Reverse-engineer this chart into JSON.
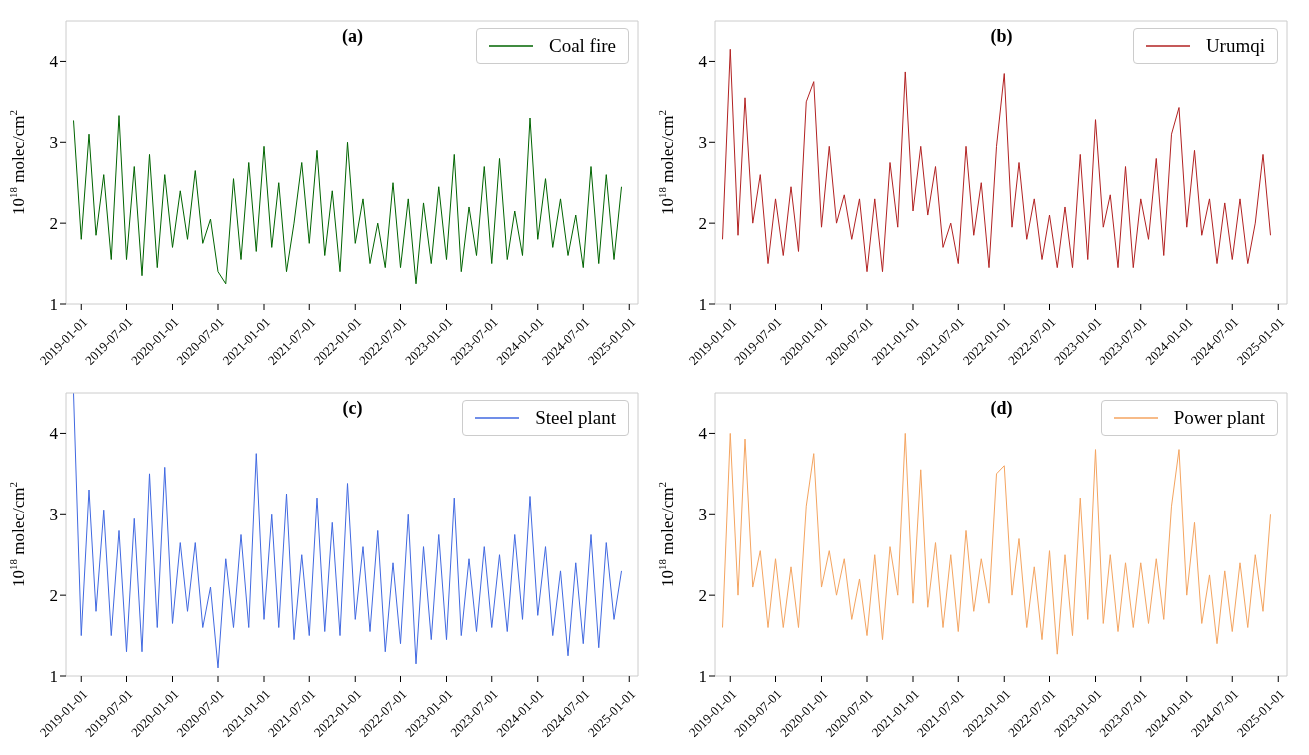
{
  "chart_data": [
    {
      "type": "line",
      "title": "(a)",
      "ylabel": "10$^{18}$ molec/cm$^{2}$",
      "legend": "top right",
      "xlim": [
        "2018-11-01",
        "2025-02-05"
      ],
      "ylim": [
        1,
        4.5
      ],
      "yticks": [
        1,
        2,
        3,
        4
      ],
      "xticks": [
        "2019-01-01",
        "2019-07-01",
        "2020-01-01",
        "2020-07-01",
        "2021-01-01",
        "2021-07-01",
        "2022-01-01",
        "2022-07-01",
        "2023-01-01",
        "2023-07-01",
        "2024-01-01",
        "2024-07-01",
        "2025-01-01"
      ],
      "x": [
        "2018-12",
        "2019-01",
        "2019-02",
        "2019-03",
        "2019-04",
        "2019-05",
        "2019-06",
        "2019-07",
        "2019-08",
        "2019-09",
        "2019-10",
        "2019-11",
        "2019-12",
        "2020-01",
        "2020-02",
        "2020-03",
        "2020-04",
        "2020-05",
        "2020-06",
        "2020-07",
        "2020-08",
        "2020-09",
        "2020-10",
        "2020-11",
        "2020-12",
        "2021-01",
        "2021-02",
        "2021-03",
        "2021-04",
        "2021-05",
        "2021-06",
        "2021-07",
        "2021-08",
        "2021-09",
        "2021-10",
        "2021-11",
        "2021-12",
        "2022-01",
        "2022-02",
        "2022-03",
        "2022-04",
        "2022-05",
        "2022-06",
        "2022-07",
        "2022-08",
        "2022-09",
        "2022-10",
        "2022-11",
        "2022-12",
        "2023-01",
        "2023-02",
        "2023-03",
        "2023-04",
        "2023-05",
        "2023-06",
        "2023-07",
        "2023-08",
        "2023-09",
        "2023-10",
        "2023-11",
        "2023-12",
        "2024-01",
        "2024-02",
        "2024-03",
        "2024-04",
        "2024-05",
        "2024-06",
        "2024-07",
        "2024-08",
        "2024-09",
        "2024-10",
        "2024-11",
        "2024-12"
      ],
      "series": [
        {
          "name": "Coal fire",
          "color": "#006400",
          "values": [
            3.27,
            1.8,
            3.1,
            1.85,
            2.6,
            1.55,
            3.33,
            1.55,
            2.7,
            1.35,
            2.85,
            1.45,
            2.6,
            1.7,
            2.4,
            1.8,
            2.65,
            1.75,
            2.05,
            1.4,
            1.25,
            2.55,
            1.55,
            2.75,
            1.65,
            2.95,
            1.7,
            2.5,
            1.4,
            2.0,
            2.75,
            1.75,
            2.9,
            1.6,
            2.4,
            1.4,
            3.0,
            1.75,
            2.3,
            1.5,
            2.0,
            1.45,
            2.5,
            1.45,
            2.3,
            1.25,
            2.25,
            1.5,
            2.45,
            1.55,
            2.85,
            1.4,
            2.2,
            1.6,
            2.7,
            1.5,
            2.8,
            1.55,
            2.15,
            1.6,
            3.3,
            1.8,
            2.55,
            1.7,
            2.3,
            1.6,
            2.1,
            1.45,
            2.7,
            1.5,
            2.6,
            1.55,
            2.45
          ]
        }
      ]
    },
    {
      "type": "line",
      "title": "(b)",
      "ylabel": "10$^{18}$ molec/cm$^{2}$",
      "legend": "top right",
      "xlim": [
        "2018-11-01",
        "2025-02-05"
      ],
      "ylim": [
        1,
        4.5
      ],
      "yticks": [
        1,
        2,
        3,
        4
      ],
      "xticks": [
        "2019-01-01",
        "2019-07-01",
        "2020-01-01",
        "2020-07-01",
        "2021-01-01",
        "2021-07-01",
        "2022-01-01",
        "2022-07-01",
        "2023-01-01",
        "2023-07-01",
        "2024-01-01",
        "2024-07-01",
        "2025-01-01"
      ],
      "x": [
        "2018-12",
        "2019-01",
        "2019-02",
        "2019-03",
        "2019-04",
        "2019-05",
        "2019-06",
        "2019-07",
        "2019-08",
        "2019-09",
        "2019-10",
        "2019-11",
        "2019-12",
        "2020-01",
        "2020-02",
        "2020-03",
        "2020-04",
        "2020-05",
        "2020-06",
        "2020-07",
        "2020-08",
        "2020-09",
        "2020-10",
        "2020-11",
        "2020-12",
        "2021-01",
        "2021-02",
        "2021-03",
        "2021-04",
        "2021-05",
        "2021-06",
        "2021-07",
        "2021-08",
        "2021-09",
        "2021-10",
        "2021-11",
        "2021-12",
        "2022-01",
        "2022-02",
        "2022-03",
        "2022-04",
        "2022-05",
        "2022-06",
        "2022-07",
        "2022-08",
        "2022-09",
        "2022-10",
        "2022-11",
        "2022-12",
        "2023-01",
        "2023-02",
        "2023-03",
        "2023-04",
        "2023-05",
        "2023-06",
        "2023-07",
        "2023-08",
        "2023-09",
        "2023-10",
        "2023-11",
        "2023-12",
        "2024-01",
        "2024-02",
        "2024-03",
        "2024-04",
        "2024-05",
        "2024-06",
        "2024-07",
        "2024-08",
        "2024-09",
        "2024-10",
        "2024-11",
        "2024-12"
      ],
      "series": [
        {
          "name": "Urumqi",
          "color": "#b22222",
          "values": [
            1.8,
            4.15,
            1.85,
            3.55,
            2.0,
            2.6,
            1.5,
            2.3,
            1.6,
            2.45,
            1.65,
            3.5,
            3.75,
            1.95,
            2.95,
            2.0,
            2.35,
            1.8,
            2.3,
            1.4,
            2.3,
            1.4,
            2.75,
            1.95,
            3.87,
            2.15,
            2.95,
            2.1,
            2.7,
            1.7,
            2.0,
            1.5,
            2.95,
            1.85,
            2.5,
            1.45,
            2.95,
            3.85,
            1.95,
            2.75,
            1.8,
            2.3,
            1.55,
            2.1,
            1.45,
            2.2,
            1.45,
            2.85,
            1.55,
            3.28,
            1.95,
            2.35,
            1.45,
            2.7,
            1.45,
            2.3,
            1.8,
            2.8,
            1.6,
            3.1,
            3.43,
            1.95,
            2.9,
            1.85,
            2.3,
            1.5,
            2.25,
            1.55,
            2.3,
            1.5,
            2.0,
            2.85,
            1.85
          ]
        }
      ]
    },
    {
      "type": "line",
      "title": "(c)",
      "ylabel": "10$^{18}$ molec/cm$^{2}$",
      "legend": "top right",
      "xlim": [
        "2018-11-01",
        "2025-02-05"
      ],
      "ylim": [
        1,
        4.5
      ],
      "yticks": [
        1,
        2,
        3,
        4
      ],
      "xticks": [
        "2019-01-01",
        "2019-07-01",
        "2020-01-01",
        "2020-07-01",
        "2021-01-01",
        "2021-07-01",
        "2022-01-01",
        "2022-07-01",
        "2023-01-01",
        "2023-07-01",
        "2024-01-01",
        "2024-07-01",
        "2025-01-01"
      ],
      "x": [
        "2018-12",
        "2019-01",
        "2019-02",
        "2019-03",
        "2019-04",
        "2019-05",
        "2019-06",
        "2019-07",
        "2019-08",
        "2019-09",
        "2019-10",
        "2019-11",
        "2019-12",
        "2020-01",
        "2020-02",
        "2020-03",
        "2020-04",
        "2020-05",
        "2020-06",
        "2020-07",
        "2020-08",
        "2020-09",
        "2020-10",
        "2020-11",
        "2020-12",
        "2021-01",
        "2021-02",
        "2021-03",
        "2021-04",
        "2021-05",
        "2021-06",
        "2021-07",
        "2021-08",
        "2021-09",
        "2021-10",
        "2021-11",
        "2021-12",
        "2022-01",
        "2022-02",
        "2022-03",
        "2022-04",
        "2022-05",
        "2022-06",
        "2022-07",
        "2022-08",
        "2022-09",
        "2022-10",
        "2022-11",
        "2022-12",
        "2023-01",
        "2023-02",
        "2023-03",
        "2023-04",
        "2023-05",
        "2023-06",
        "2023-07",
        "2023-08",
        "2023-09",
        "2023-10",
        "2023-11",
        "2023-12",
        "2024-01",
        "2024-02",
        "2024-03",
        "2024-04",
        "2024-05",
        "2024-06",
        "2024-07",
        "2024-08",
        "2024-09",
        "2024-10",
        "2024-11",
        "2024-12"
      ],
      "series": [
        {
          "name": "Steel plant",
          "color": "#4169e1",
          "values": [
            4.5,
            1.5,
            3.3,
            1.8,
            3.05,
            1.5,
            2.8,
            1.3,
            2.95,
            1.3,
            3.5,
            1.6,
            3.58,
            1.65,
            2.65,
            1.8,
            2.65,
            1.6,
            2.1,
            1.1,
            2.45,
            1.6,
            2.75,
            1.6,
            3.75,
            1.7,
            3.0,
            1.6,
            3.25,
            1.45,
            2.5,
            1.5,
            3.2,
            1.55,
            2.9,
            1.5,
            3.38,
            1.7,
            2.6,
            1.55,
            2.8,
            1.3,
            2.4,
            1.4,
            3.0,
            1.15,
            2.6,
            1.45,
            2.75,
            1.45,
            3.2,
            1.5,
            2.45,
            1.55,
            2.6,
            1.6,
            2.5,
            1.55,
            2.75,
            1.7,
            3.22,
            1.75,
            2.6,
            1.5,
            2.3,
            1.25,
            2.4,
            1.4,
            2.75,
            1.35,
            2.65,
            1.7,
            2.3
          ]
        }
      ]
    },
    {
      "type": "line",
      "title": "(d)",
      "ylabel": "10$^{18}$ molec/cm$^{2}$",
      "legend": "top right",
      "xlim": [
        "2018-11-01",
        "2025-02-05"
      ],
      "ylim": [
        1,
        4.5
      ],
      "yticks": [
        1,
        2,
        3,
        4
      ],
      "xticks": [
        "2019-01-01",
        "2019-07-01",
        "2020-01-01",
        "2020-07-01",
        "2021-01-01",
        "2021-07-01",
        "2022-01-01",
        "2022-07-01",
        "2023-01-01",
        "2023-07-01",
        "2024-01-01",
        "2024-07-01",
        "2025-01-01"
      ],
      "x": [
        "2018-12",
        "2019-01",
        "2019-02",
        "2019-03",
        "2019-04",
        "2019-05",
        "2019-06",
        "2019-07",
        "2019-08",
        "2019-09",
        "2019-10",
        "2019-11",
        "2019-12",
        "2020-01",
        "2020-02",
        "2020-03",
        "2020-04",
        "2020-05",
        "2020-06",
        "2020-07",
        "2020-08",
        "2020-09",
        "2020-10",
        "2020-11",
        "2020-12",
        "2021-01",
        "2021-02",
        "2021-03",
        "2021-04",
        "2021-05",
        "2021-06",
        "2021-07",
        "2021-08",
        "2021-09",
        "2021-10",
        "2021-11",
        "2021-12",
        "2022-01",
        "2022-02",
        "2022-03",
        "2022-04",
        "2022-05",
        "2022-06",
        "2022-07",
        "2022-08",
        "2022-09",
        "2022-10",
        "2022-11",
        "2022-12",
        "2023-01",
        "2023-02",
        "2023-03",
        "2023-04",
        "2023-05",
        "2023-06",
        "2023-07",
        "2023-08",
        "2023-09",
        "2023-10",
        "2023-11",
        "2023-12",
        "2024-01",
        "2024-02",
        "2024-03",
        "2024-04",
        "2024-05",
        "2024-06",
        "2024-07",
        "2024-08",
        "2024-09",
        "2024-10",
        "2024-11",
        "2024-12"
      ],
      "series": [
        {
          "name": "Power plant",
          "color": "#f4a460",
          "values": [
            1.6,
            4.0,
            2.0,
            3.93,
            2.1,
            2.55,
            1.6,
            2.45,
            1.6,
            2.35,
            1.6,
            3.1,
            3.75,
            2.1,
            2.55,
            2.0,
            2.45,
            1.7,
            2.2,
            1.5,
            2.5,
            1.45,
            2.6,
            2.0,
            4.0,
            1.9,
            3.55,
            1.85,
            2.65,
            1.6,
            2.5,
            1.55,
            2.8,
            1.8,
            2.45,
            1.9,
            3.5,
            3.6,
            2.0,
            2.7,
            1.6,
            2.35,
            1.45,
            2.55,
            1.27,
            2.5,
            1.5,
            3.2,
            1.7,
            3.8,
            1.65,
            2.5,
            1.55,
            2.4,
            1.6,
            2.4,
            1.65,
            2.45,
            1.7,
            3.1,
            3.8,
            2.0,
            2.9,
            1.65,
            2.25,
            1.4,
            2.3,
            1.55,
            2.4,
            1.6,
            2.5,
            1.8,
            3.0
          ]
        }
      ]
    }
  ]
}
